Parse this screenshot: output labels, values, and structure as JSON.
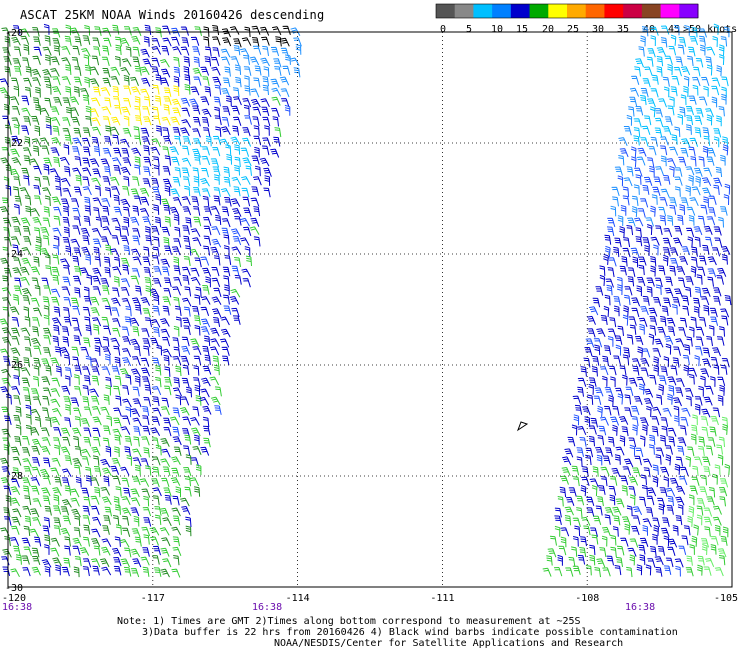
{
  "title": "ASCAT 25KM NOAA Winds 20160426 descending",
  "legend": {
    "colors": [
      "#555555",
      "#888888",
      "#00bfff",
      "#0080ff",
      "#0000cc",
      "#00aa00",
      "#ffff00",
      "#ffaa00",
      "#ff6600",
      "#ff0000",
      "#cc0044",
      "#884422",
      "#ff00ff",
      "#8800ff"
    ],
    "tick_labels": [
      "0",
      "5",
      "10",
      "15",
      "20",
      "25",
      "30",
      "35",
      "40",
      "45",
      ">50 knots"
    ]
  },
  "axes": {
    "lat_labels": [
      "-20",
      "-22",
      "-24",
      "-26",
      "-28",
      "-30"
    ],
    "lon_labels": [
      "-120",
      "-117",
      "-114",
      "-111",
      "-108",
      "-105"
    ]
  },
  "pass_times": [
    "16:38",
    "16:38",
    "16:38"
  ],
  "notes": {
    "line1": "Note: 1) Times are GMT 2)Times along bottom correspond to measurement at ~25S",
    "line2": "3)Data buffer is 22 hrs from 20160426 4) Black wind barbs indicate possible contamination",
    "line3": "NOAA/NESDIS/Center for Satellite Applications and Research"
  },
  "barb_colors": {
    "dark_green": "#228b22",
    "green": "#33cc33",
    "light_green": "#66ee66",
    "blue": "#0000cc",
    "mid_blue": "#1e50ff",
    "light_blue": "#1e90ff",
    "cyan": "#00bfff",
    "yellow": "#ffee00",
    "black": "#000000"
  }
}
